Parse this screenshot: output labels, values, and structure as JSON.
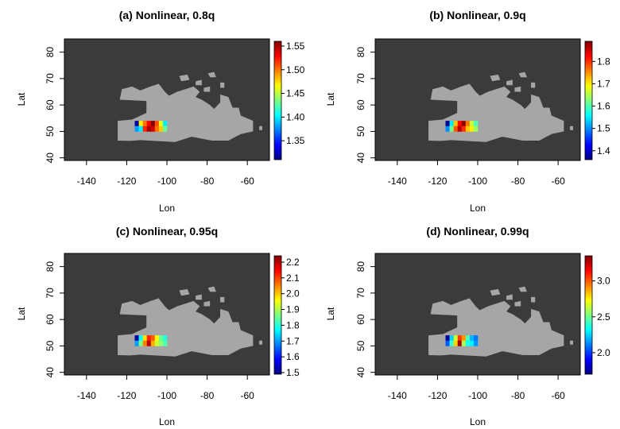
{
  "chart_data": [
    {
      "type": "heatmap",
      "title": "(a) Nonlinear, 0.8q",
      "xlabel": "Lon",
      "ylabel": "Lat",
      "xlim": [
        -151,
        -49
      ],
      "ylim": [
        39,
        85
      ],
      "xticks": [
        -140,
        -120,
        -100,
        -80,
        -60
      ],
      "yticks": [
        40,
        50,
        60,
        70,
        80
      ],
      "colorbar": {
        "min": 1.31,
        "max": 1.56,
        "ticks": [
          "1.35",
          "1.40",
          "1.45",
          "1.50",
          "1.55"
        ],
        "tick_values": [
          1.35,
          1.4,
          1.45,
          1.5,
          1.55
        ]
      },
      "hotspot": [
        {
          "lon": -115,
          "lat": 53,
          "value": 1.32
        },
        {
          "lon": -115,
          "lat": 51,
          "value": 1.38
        },
        {
          "lon": -113,
          "lat": 53,
          "value": 1.47
        },
        {
          "lon": -113,
          "lat": 51,
          "value": 1.4
        },
        {
          "lon": -111,
          "lat": 53,
          "value": 1.5
        },
        {
          "lon": -111,
          "lat": 51,
          "value": 1.52
        },
        {
          "lon": -109,
          "lat": 53,
          "value": 1.53
        },
        {
          "lon": -109,
          "lat": 51,
          "value": 1.55
        },
        {
          "lon": -107,
          "lat": 53,
          "value": 1.56
        },
        {
          "lon": -107,
          "lat": 51,
          "value": 1.54
        },
        {
          "lon": -105,
          "lat": 53,
          "value": 1.51
        },
        {
          "lon": -105,
          "lat": 51,
          "value": 1.5
        },
        {
          "lon": -103,
          "lat": 53,
          "value": 1.46
        },
        {
          "lon": -103,
          "lat": 51,
          "value": 1.48
        },
        {
          "lon": -101,
          "lat": 53,
          "value": 1.4
        },
        {
          "lon": -101,
          "lat": 51,
          "value": 1.43
        }
      ]
    },
    {
      "type": "heatmap",
      "title": "(b) Nonlinear, 0.9q",
      "xlabel": "Lon",
      "ylabel": "Lat",
      "xlim": [
        -151,
        -49
      ],
      "ylim": [
        39,
        85
      ],
      "xticks": [
        -140,
        -120,
        -100,
        -80,
        -60
      ],
      "yticks": [
        40,
        50,
        60,
        70,
        80
      ],
      "colorbar": {
        "min": 1.36,
        "max": 1.89,
        "ticks": [
          "1.4",
          "1.5",
          "1.6",
          "1.7",
          "1.8"
        ],
        "tick_values": [
          1.4,
          1.5,
          1.6,
          1.7,
          1.8
        ]
      },
      "hotspot": [
        {
          "lon": -115,
          "lat": 53,
          "value": 1.37
        },
        {
          "lon": -115,
          "lat": 51,
          "value": 1.5
        },
        {
          "lon": -113,
          "lat": 53,
          "value": 1.55
        },
        {
          "lon": -113,
          "lat": 51,
          "value": 1.62
        },
        {
          "lon": -111,
          "lat": 53,
          "value": 1.72
        },
        {
          "lon": -111,
          "lat": 51,
          "value": 1.78
        },
        {
          "lon": -109,
          "lat": 53,
          "value": 1.82
        },
        {
          "lon": -109,
          "lat": 51,
          "value": 1.86
        },
        {
          "lon": -107,
          "lat": 53,
          "value": 1.88
        },
        {
          "lon": -107,
          "lat": 51,
          "value": 1.8
        },
        {
          "lon": -105,
          "lat": 53,
          "value": 1.76
        },
        {
          "lon": -105,
          "lat": 51,
          "value": 1.72
        },
        {
          "lon": -103,
          "lat": 53,
          "value": 1.66
        },
        {
          "lon": -103,
          "lat": 51,
          "value": 1.7
        },
        {
          "lon": -101,
          "lat": 53,
          "value": 1.6
        },
        {
          "lon": -101,
          "lat": 51,
          "value": 1.64
        }
      ]
    },
    {
      "type": "heatmap",
      "title": "(c) Nonlinear, 0.95q",
      "xlabel": "Lon",
      "ylabel": "Lat",
      "xlim": [
        -151,
        -49
      ],
      "ylim": [
        39,
        85
      ],
      "xticks": [
        -140,
        -120,
        -100,
        -80,
        -60
      ],
      "yticks": [
        40,
        50,
        60,
        70,
        80
      ],
      "colorbar": {
        "min": 1.49,
        "max": 2.24,
        "ticks": [
          "1.5",
          "1.6",
          "1.7",
          "1.8",
          "1.9",
          "2.0",
          "2.1",
          "2.2"
        ],
        "tick_values": [
          1.5,
          1.6,
          1.7,
          1.8,
          1.9,
          2.0,
          2.1,
          2.2
        ]
      },
      "hotspot": [
        {
          "lon": -115,
          "lat": 53,
          "value": 1.52
        },
        {
          "lon": -115,
          "lat": 51,
          "value": 1.7
        },
        {
          "lon": -113,
          "lat": 53,
          "value": 1.78
        },
        {
          "lon": -113,
          "lat": 51,
          "value": 1.86
        },
        {
          "lon": -111,
          "lat": 53,
          "value": 1.98
        },
        {
          "lon": -111,
          "lat": 51,
          "value": 2.05
        },
        {
          "lon": -109,
          "lat": 53,
          "value": 2.12
        },
        {
          "lon": -109,
          "lat": 51,
          "value": 2.2
        },
        {
          "lon": -107,
          "lat": 53,
          "value": 2.08
        },
        {
          "lon": -107,
          "lat": 51,
          "value": 2.02
        },
        {
          "lon": -105,
          "lat": 53,
          "value": 1.96
        },
        {
          "lon": -105,
          "lat": 51,
          "value": 1.92
        },
        {
          "lon": -103,
          "lat": 53,
          "value": 1.85
        },
        {
          "lon": -103,
          "lat": 51,
          "value": 1.88
        },
        {
          "lon": -101,
          "lat": 53,
          "value": 1.8
        },
        {
          "lon": -101,
          "lat": 51,
          "value": 1.83
        }
      ]
    },
    {
      "type": "heatmap",
      "title": "(d) Nonlinear, 0.99q",
      "xlabel": "Lon",
      "ylabel": "Lat",
      "xlim": [
        -151,
        -49
      ],
      "ylim": [
        39,
        85
      ],
      "xticks": [
        -140,
        -120,
        -100,
        -80,
        -60
      ],
      "yticks": [
        40,
        50,
        60,
        70,
        80
      ],
      "colorbar": {
        "min": 1.7,
        "max": 3.35,
        "ticks": [
          "2.0",
          "2.5",
          "3.0"
        ],
        "tick_values": [
          2.0,
          2.5,
          3.0
        ]
      },
      "hotspot": [
        {
          "lon": -115,
          "lat": 53,
          "value": 1.75
        },
        {
          "lon": -115,
          "lat": 51,
          "value": 2.05
        },
        {
          "lon": -113,
          "lat": 53,
          "value": 2.25
        },
        {
          "lon": -113,
          "lat": 51,
          "value": 2.4
        },
        {
          "lon": -111,
          "lat": 53,
          "value": 2.65
        },
        {
          "lon": -111,
          "lat": 51,
          "value": 2.8
        },
        {
          "lon": -109,
          "lat": 53,
          "value": 3.05
        },
        {
          "lon": -109,
          "lat": 51,
          "value": 3.3
        },
        {
          "lon": -107,
          "lat": 53,
          "value": 2.9
        },
        {
          "lon": -107,
          "lat": 51,
          "value": 2.6
        },
        {
          "lon": -105,
          "lat": 53,
          "value": 2.45
        },
        {
          "lon": -105,
          "lat": 51,
          "value": 2.35
        },
        {
          "lon": -103,
          "lat": 53,
          "value": 2.2
        },
        {
          "lon": -103,
          "lat": 51,
          "value": 2.3
        },
        {
          "lon": -101,
          "lat": 53,
          "value": 2.1
        },
        {
          "lon": -101,
          "lat": 51,
          "value": 2.15
        }
      ]
    }
  ]
}
